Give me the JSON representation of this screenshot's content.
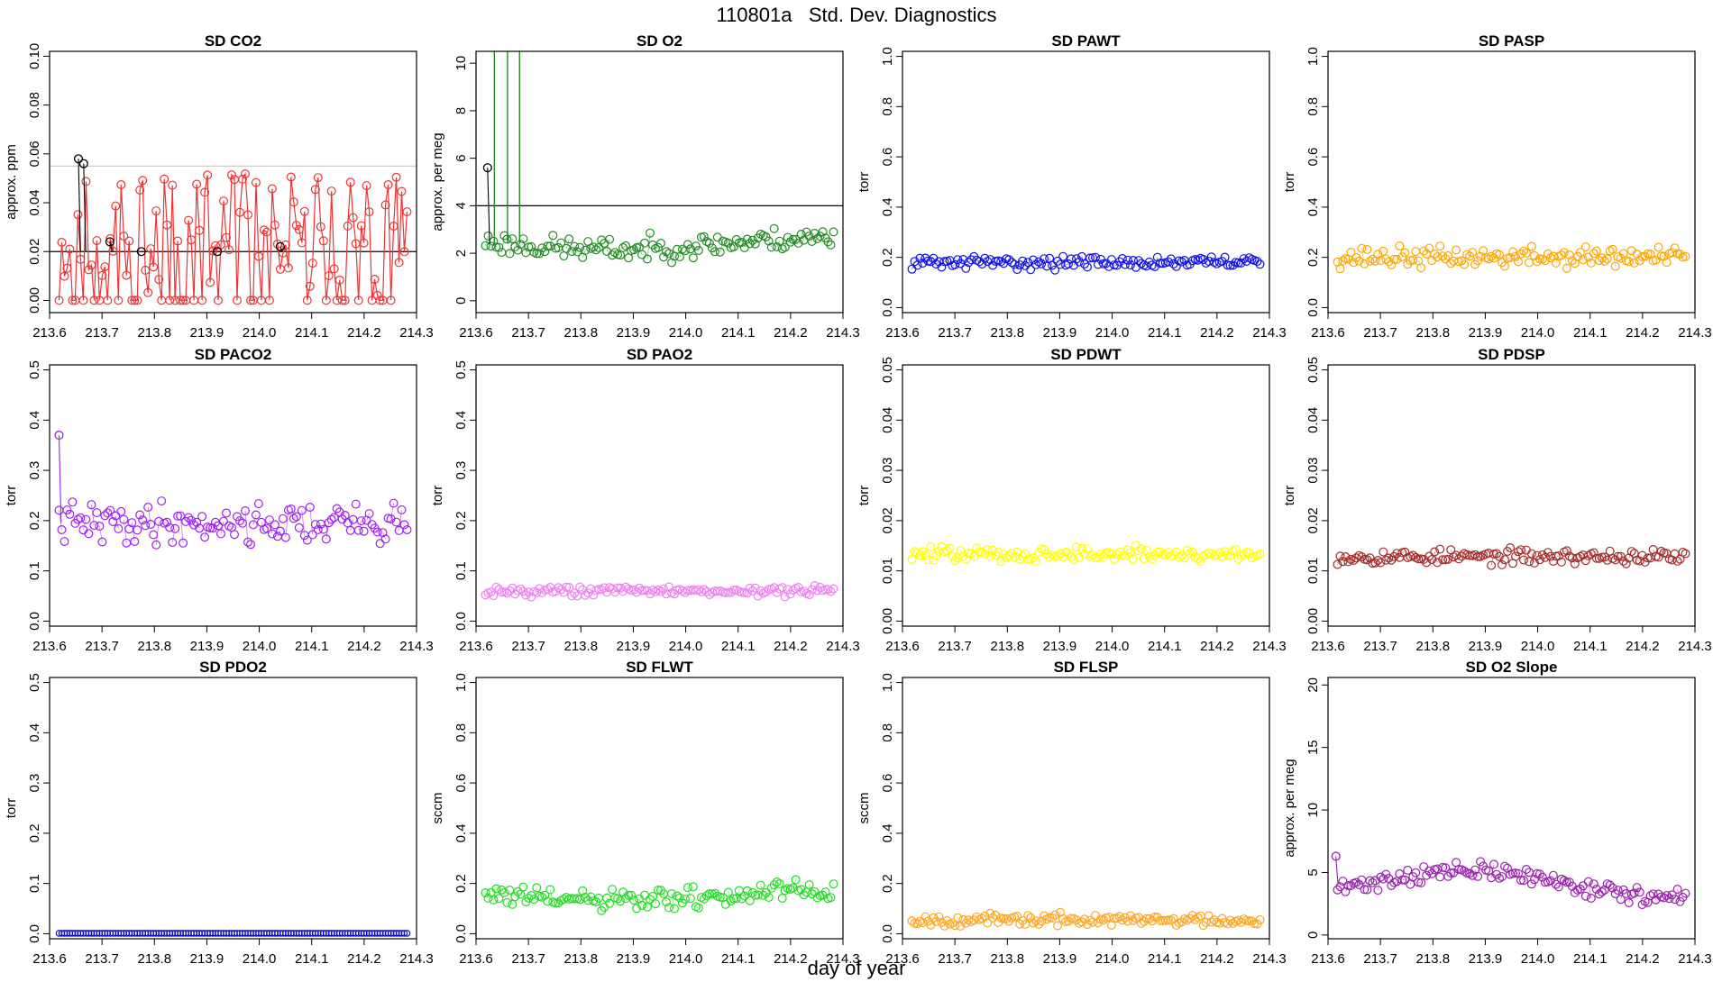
{
  "figure": {
    "title_id": "110801a",
    "title_text": "Std. Dev. Diagnostics",
    "xlabel": "day of year"
  },
  "chart_data": [
    {
      "type": "scatter",
      "title": "SD CO2",
      "ylabel": "approx. ppm",
      "color": "#ee3333",
      "lines": true,
      "xlim": [
        213.6,
        214.3
      ],
      "ylim": [
        -0.005,
        0.102
      ],
      "xticks": [
        "213.6",
        "213.7",
        "213.8",
        "213.9",
        "214.0",
        "214.1",
        "214.2",
        "214.3"
      ],
      "yticks": [
        "0.00",
        "0.02",
        "0.04",
        "0.06",
        "0.08",
        "0.10"
      ],
      "hlines": [
        {
          "value": 0.02,
          "color": "#000000"
        },
        {
          "value": 0.055,
          "color": "#cccccc"
        }
      ],
      "seed": 11,
      "base": 0.02,
      "noise": 0.016,
      "ymin_clip": 0,
      "outliers": [
        {
          "x": 213.655,
          "y": 0.058,
          "color": "#000000"
        },
        {
          "x": 213.665,
          "y": 0.056,
          "color": "#000000"
        },
        {
          "x": 213.715,
          "y": 0.024,
          "color": "#000000"
        },
        {
          "x": 213.775,
          "y": 0.02,
          "color": "#000000"
        },
        {
          "x": 213.92,
          "y": 0.02,
          "color": "#000000"
        },
        {
          "x": 214.04,
          "y": 0.022,
          "color": "#000000"
        }
      ]
    },
    {
      "type": "scatter",
      "title": "SD O2",
      "ylabel": "approx. per meg",
      "color": "#228b22",
      "lines": false,
      "xlim": [
        213.6,
        214.3
      ],
      "ylim": [
        -0.5,
        10.5
      ],
      "xticks": [
        "213.6",
        "213.7",
        "213.8",
        "213.9",
        "214.0",
        "214.1",
        "214.2",
        "214.3"
      ],
      "yticks": [
        "0",
        "2",
        "4",
        "6",
        "8",
        "10"
      ],
      "hlines": [
        {
          "value": 4,
          "color": "#000000"
        }
      ],
      "seed": 23,
      "base": 2.4,
      "noise": 0.3,
      "trend": -0.25,
      "spikes": [
        {
          "x": 213.635
        },
        {
          "x": 213.66
        },
        {
          "x": 213.683
        }
      ],
      "outliers": [
        {
          "x": 213.622,
          "y": 5.6,
          "color": "#000000"
        }
      ]
    },
    {
      "type": "scatter",
      "title": "SD PAWT",
      "ylabel": "torr",
      "color": "#1010ee",
      "lines": false,
      "xlim": [
        213.6,
        214.3
      ],
      "ylim": [
        -0.02,
        1.02
      ],
      "xticks": [
        "213.6",
        "213.7",
        "213.8",
        "213.9",
        "214.0",
        "214.1",
        "214.2",
        "214.3"
      ],
      "yticks": [
        "0.0",
        "0.2",
        "0.4",
        "0.6",
        "0.8",
        "1.0"
      ],
      "seed": 31,
      "base": 0.18,
      "noise": 0.015
    },
    {
      "type": "scatter",
      "title": "SD PASP",
      "ylabel": "torr",
      "color": "#ffa500",
      "lines": false,
      "xlim": [
        213.6,
        214.3
      ],
      "ylim": [
        -0.02,
        1.02
      ],
      "xticks": [
        "213.6",
        "213.7",
        "213.8",
        "213.9",
        "214.0",
        "214.1",
        "214.2",
        "214.3"
      ],
      "yticks": [
        "0.0",
        "0.2",
        "0.4",
        "0.6",
        "0.8",
        "1.0"
      ],
      "seed": 37,
      "base": 0.2,
      "noise": 0.025
    },
    {
      "type": "scatter",
      "title": "SD PACO2",
      "ylabel": "torr",
      "color": "#a020f0",
      "lines": false,
      "xlim": [
        213.6,
        214.3
      ],
      "ylim": [
        -0.01,
        0.51
      ],
      "xticks": [
        "213.6",
        "213.7",
        "213.8",
        "213.9",
        "214.0",
        "214.1",
        "214.2",
        "214.3"
      ],
      "yticks": [
        "0.0",
        "0.1",
        "0.2",
        "0.3",
        "0.4",
        "0.5"
      ],
      "seed": 41,
      "base": 0.195,
      "noise": 0.025,
      "outliers": [
        {
          "x": 213.618,
          "y": 0.37,
          "color": "#a020f0"
        }
      ]
    },
    {
      "type": "scatter",
      "title": "SD PAO2",
      "ylabel": "torr",
      "color": "#ee82ee",
      "lines": false,
      "xlim": [
        213.6,
        214.3
      ],
      "ylim": [
        -0.01,
        0.51
      ],
      "xticks": [
        "213.6",
        "213.7",
        "213.8",
        "213.9",
        "214.0",
        "214.1",
        "214.2",
        "214.3"
      ],
      "yticks": [
        "0.0",
        "0.1",
        "0.2",
        "0.3",
        "0.4",
        "0.5"
      ],
      "seed": 43,
      "base": 0.06,
      "noise": 0.006
    },
    {
      "type": "scatter",
      "title": "SD PDWT",
      "ylabel": "torr",
      "color": "#ffff00",
      "lines": false,
      "xlim": [
        213.6,
        214.3
      ],
      "ylim": [
        -0.001,
        0.051
      ],
      "xticks": [
        "213.6",
        "213.7",
        "213.8",
        "213.9",
        "214.0",
        "214.1",
        "214.2",
        "214.3"
      ],
      "yticks": [
        "0.00",
        "0.01",
        "0.02",
        "0.03",
        "0.04",
        "0.05"
      ],
      "seed": 47,
      "base": 0.0133,
      "noise": 0.0009
    },
    {
      "type": "scatter",
      "title": "SD PDSP",
      "ylabel": "torr",
      "color": "#a52a2a",
      "lines": false,
      "xlim": [
        213.6,
        214.3
      ],
      "ylim": [
        -0.001,
        0.051
      ],
      "xticks": [
        "213.6",
        "213.7",
        "213.8",
        "213.9",
        "214.0",
        "214.1",
        "214.2",
        "214.3"
      ],
      "yticks": [
        "0.00",
        "0.01",
        "0.02",
        "0.03",
        "0.04",
        "0.05"
      ],
      "seed": 53,
      "base": 0.0128,
      "noise": 0.0009
    },
    {
      "type": "scatter",
      "title": "SD PDO2",
      "ylabel": "torr",
      "color": "#1010bb",
      "lines": false,
      "xlim": [
        213.6,
        214.3
      ],
      "ylim": [
        -0.01,
        0.51
      ],
      "xticks": [
        "213.6",
        "213.7",
        "213.8",
        "213.9",
        "214.0",
        "214.1",
        "214.2",
        "214.3"
      ],
      "yticks": [
        "0.0",
        "0.1",
        "0.2",
        "0.3",
        "0.4",
        "0.5"
      ],
      "seed": 59,
      "base": 0.001,
      "noise": 0,
      "small_markers": true
    },
    {
      "type": "scatter",
      "title": "SD FLWT",
      "ylabel": "sccm",
      "color": "#22dd22",
      "lines": false,
      "xlim": [
        213.6,
        214.3
      ],
      "ylim": [
        -0.02,
        1.02
      ],
      "xticks": [
        "213.6",
        "213.7",
        "213.8",
        "213.9",
        "214.0",
        "214.1",
        "214.2",
        "214.3"
      ],
      "yticks": [
        "0.0",
        "0.2",
        "0.4",
        "0.6",
        "0.8",
        "1.0"
      ],
      "seed": 61,
      "base": 0.15,
      "noise": 0.028,
      "trend": -0.02
    },
    {
      "type": "scatter",
      "title": "SD FLSP",
      "ylabel": "sccm",
      "color": "#ffa520",
      "lines": false,
      "xlim": [
        213.6,
        214.3
      ],
      "ylim": [
        -0.02,
        1.02
      ],
      "xticks": [
        "213.6",
        "213.7",
        "213.8",
        "213.9",
        "214.0",
        "214.1",
        "214.2",
        "214.3"
      ],
      "yticks": [
        "0.0",
        "0.2",
        "0.4",
        "0.6",
        "0.8",
        "1.0"
      ],
      "seed": 67,
      "base": 0.055,
      "noise": 0.014
    },
    {
      "type": "scatter",
      "title": "SD O2 Slope",
      "ylabel": "approx. per meg",
      "color": "#9b1fb0",
      "lines": false,
      "xlim": [
        213.6,
        214.3
      ],
      "ylim": [
        -0.3,
        20.6
      ],
      "xticks": [
        "213.6",
        "213.7",
        "213.8",
        "213.9",
        "214.0",
        "214.1",
        "214.2",
        "214.3"
      ],
      "yticks": [
        "0",
        "5",
        "10",
        "15",
        "20"
      ],
      "seed": 71,
      "base": 4.0,
      "noise": 0.45,
      "trend": 1.1,
      "outliers": [
        {
          "x": 213.615,
          "y": 6.3,
          "color": "#9b1fb0"
        }
      ]
    }
  ]
}
